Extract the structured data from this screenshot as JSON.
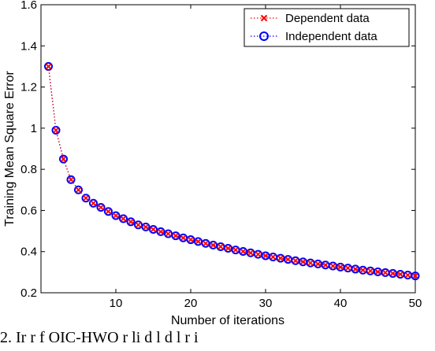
{
  "chart_data": {
    "type": "line",
    "xlabel": "Number of iterations",
    "ylabel": "Training Mean Square Error",
    "xlim": [
      0,
      50
    ],
    "ylim": [
      0.2,
      1.6
    ],
    "xticks": [
      10,
      20,
      30,
      40,
      50
    ],
    "yticks": [
      0.2,
      0.4,
      0.6,
      0.8,
      1,
      1.2,
      1.4,
      1.6
    ],
    "ytick_labels": [
      "0.2",
      "0.4",
      "0.6",
      "0.8",
      "1",
      "1.2",
      "1.4",
      "1.6"
    ],
    "legend_position": "top-right",
    "grid": false,
    "x": [
      1,
      2,
      3,
      4,
      5,
      6,
      7,
      8,
      9,
      10,
      11,
      12,
      13,
      14,
      15,
      16,
      17,
      18,
      19,
      20,
      21,
      22,
      23,
      24,
      25,
      26,
      27,
      28,
      29,
      30,
      31,
      32,
      33,
      34,
      35,
      36,
      37,
      38,
      39,
      40,
      41,
      42,
      43,
      44,
      45,
      46,
      47,
      48,
      49,
      50
    ],
    "series": [
      {
        "name": "Dependent data",
        "marker": "x",
        "color": "#ff0000",
        "line_style": "dotted",
        "values": [
          1.3,
          0.99,
          0.85,
          0.75,
          0.7,
          0.66,
          0.635,
          0.615,
          0.595,
          0.575,
          0.56,
          0.545,
          0.53,
          0.52,
          0.508,
          0.497,
          0.487,
          0.477,
          0.467,
          0.458,
          0.449,
          0.44,
          0.432,
          0.424,
          0.416,
          0.408,
          0.401,
          0.394,
          0.387,
          0.38,
          0.374,
          0.368,
          0.362,
          0.356,
          0.35,
          0.345,
          0.34,
          0.335,
          0.33,
          0.325,
          0.32,
          0.315,
          0.31,
          0.306,
          0.302,
          0.298,
          0.294,
          0.29,
          0.286,
          0.282
        ]
      },
      {
        "name": "Independent data",
        "marker": "o",
        "color": "#0000ff",
        "line_style": "dotted",
        "values": [
          1.3,
          0.99,
          0.85,
          0.75,
          0.7,
          0.66,
          0.635,
          0.615,
          0.595,
          0.575,
          0.56,
          0.545,
          0.53,
          0.52,
          0.508,
          0.497,
          0.487,
          0.477,
          0.467,
          0.458,
          0.449,
          0.44,
          0.432,
          0.424,
          0.416,
          0.408,
          0.401,
          0.394,
          0.387,
          0.38,
          0.374,
          0.368,
          0.362,
          0.356,
          0.35,
          0.345,
          0.34,
          0.335,
          0.33,
          0.325,
          0.32,
          0.315,
          0.31,
          0.306,
          0.302,
          0.298,
          0.294,
          0.29,
          0.286,
          0.282
        ]
      }
    ]
  },
  "caption": {
    "text": "2. Ir      r      f OIC-HWO   r  li   d   l   d   l   r   i"
  }
}
